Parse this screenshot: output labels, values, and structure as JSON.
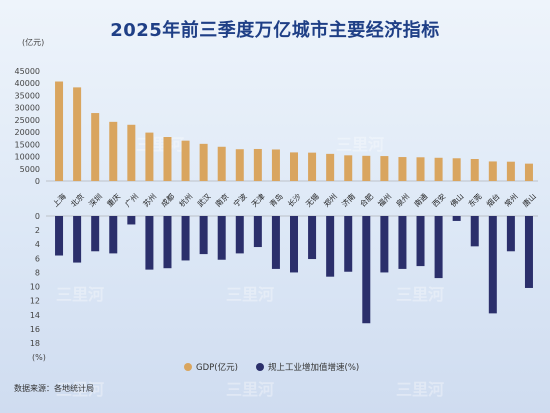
{
  "title": "2025年前三季度万亿城市主要经济指标",
  "source": "数据来源：各地统计局",
  "watermark": "三里河",
  "colors": {
    "gdp": "#d9a55f",
    "industry": "#2b2f6b",
    "title": "#1f3f86"
  },
  "chart_data": {
    "type": "bar",
    "categories": [
      "上海",
      "北京",
      "深圳",
      "重庆",
      "广州",
      "苏州",
      "成都",
      "杭州",
      "武汉",
      "南京",
      "宁波",
      "天津",
      "青岛",
      "长沙",
      "无锡",
      "郑州",
      "济南",
      "合肥",
      "福州",
      "泉州",
      "南通",
      "西安",
      "佛山",
      "东莞",
      "烟台",
      "常州",
      "唐山"
    ],
    "series": [
      {
        "name": "GDP(亿元)",
        "unit_label": "(亿元)",
        "ylim": [
          0,
          45000
        ],
        "ticks": [
          "45000",
          "40000",
          "35000",
          "30000",
          "25000",
          "20000",
          "15000",
          "10000",
          "5000",
          "0"
        ],
        "values": [
          40700,
          38300,
          27800,
          24200,
          23000,
          19800,
          18000,
          16500,
          15200,
          14000,
          13000,
          13100,
          12900,
          11700,
          11600,
          11100,
          10500,
          10300,
          10200,
          9800,
          9700,
          9500,
          9300,
          9000,
          8000,
          7900,
          7100
        ]
      },
      {
        "name": "规上工业增加值增速(%)",
        "unit_label": "(%)",
        "ylim": [
          0,
          18
        ],
        "ticks": [
          "0",
          "2",
          "4",
          "6",
          "8",
          "10",
          "12",
          "14",
          "16",
          "18"
        ],
        "values": [
          5.6,
          6.6,
          5.0,
          5.3,
          1.2,
          7.6,
          7.4,
          6.3,
          5.4,
          6.2,
          5.3,
          4.4,
          7.5,
          8.0,
          6.1,
          8.6,
          7.9,
          15.2,
          8.0,
          7.5,
          7.1,
          8.8,
          0.7,
          4.3,
          13.8,
          5.0,
          10.2
        ]
      }
    ],
    "legend_position": "bottom-center",
    "grid": false
  }
}
